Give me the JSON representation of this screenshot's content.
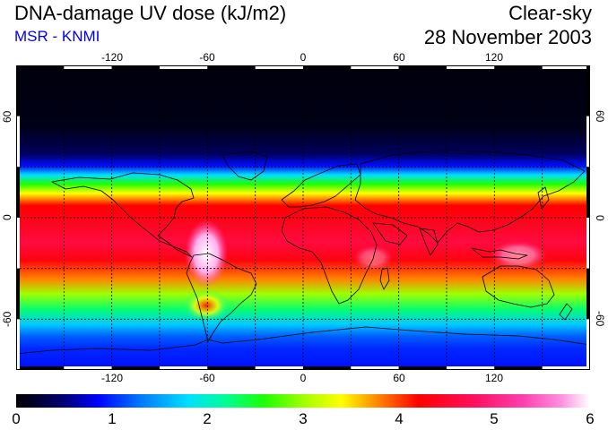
{
  "header": {
    "title": "DNA-damage UV dose (kJ/m2)",
    "source": "MSR - KNMI",
    "mode": "Clear-sky",
    "date": "28 November 2003"
  },
  "map": {
    "projection": "equirectangular",
    "lon_range": [
      -180,
      180
    ],
    "lat_range": [
      -90,
      90
    ],
    "graticule_step_deg": 30,
    "lon_tick_labels": [
      "-120",
      "-60",
      "0",
      "60",
      "120"
    ],
    "lon_tick_values": [
      -120,
      -60,
      0,
      60,
      120
    ],
    "lat_tick_labels_left": [
      "60",
      "0",
      "-60"
    ],
    "lat_tick_labels_right": [
      "60",
      "0",
      "-60"
    ],
    "lat_tick_values": [
      60,
      0,
      -60
    ],
    "palette_stops": [
      {
        "value": 0.0,
        "color": "#000000"
      },
      {
        "value": 0.5,
        "color": "#000075"
      },
      {
        "value": 0.85,
        "color": "#0000ff"
      },
      {
        "value": 1.3,
        "color": "#0078ff"
      },
      {
        "value": 1.8,
        "color": "#00e0ff"
      },
      {
        "value": 2.2,
        "color": "#00ff90"
      },
      {
        "value": 2.6,
        "color": "#20ff00"
      },
      {
        "value": 3.0,
        "color": "#a0ff00"
      },
      {
        "value": 3.4,
        "color": "#ffff00"
      },
      {
        "value": 3.8,
        "color": "#ff8000"
      },
      {
        "value": 4.2,
        "color": "#ff0000"
      },
      {
        "value": 4.8,
        "color": "#ff1060"
      },
      {
        "value": 5.3,
        "color": "#ff40b0"
      },
      {
        "value": 5.7,
        "color": "#ff90e0"
      },
      {
        "value": 6.0,
        "color": "#ffffff"
      }
    ]
  },
  "colorbar": {
    "min": 0,
    "max": 6,
    "labels": [
      "0",
      "1",
      "2",
      "3",
      "4",
      "5",
      "6"
    ],
    "label_values": [
      0,
      1,
      2,
      3,
      4,
      5,
      6
    ]
  }
}
